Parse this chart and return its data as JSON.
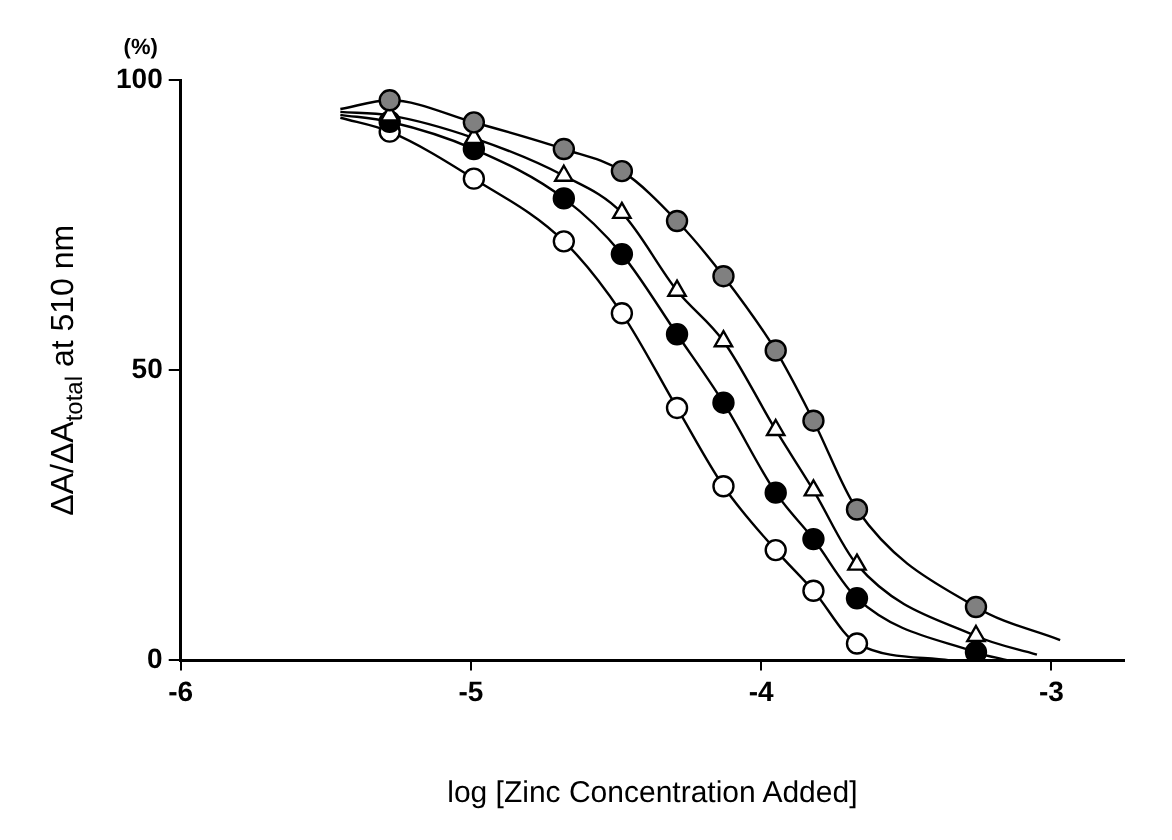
{
  "chart_data": {
    "type": "scatter",
    "xlabel": "log [Zinc Concentration Added]",
    "ylabel": "ΔA/ΔA$_{total}$ at 510 nm",
    "annotations": [
      "(%)"
    ],
    "x": [
      -5.28,
      -4.99,
      -4.68,
      -4.48,
      -4.29,
      -4.13,
      -3.95,
      -3.82,
      -3.67,
      -3.26
    ],
    "xlim": [
      -6,
      -2.75
    ],
    "xticks": [
      -6,
      -5,
      -4,
      -3
    ],
    "ylim": [
      0,
      100
    ],
    "yticks": [
      0,
      50,
      100
    ],
    "grid": false,
    "legend": false,
    "series": [
      {
        "type": "line",
        "marker": "none",
        "color": "#000000",
        "x": [
          -5.45,
          -5.28,
          -4.99,
          -4.68,
          -4.48,
          -4.29,
          -4.13,
          -3.95,
          -3.82,
          -3.67,
          -3.26,
          -2.97
        ],
        "values": [
          95,
          96.5,
          92.7,
          88.1,
          84.3,
          75.7,
          66.2,
          53.4,
          41.3,
          26,
          9.2,
          3.5
        ]
      },
      {
        "type": "line",
        "marker": "none",
        "color": "#000000",
        "x": [
          -5.45,
          -5.28,
          -4.99,
          -4.68,
          -4.48,
          -4.29,
          -4.13,
          -3.95,
          -3.82,
          -3.67,
          -3.26,
          -3.05
        ],
        "values": [
          94.5,
          93.9,
          90,
          83.5,
          77.1,
          63.7,
          55,
          39.7,
          29.3,
          16.5,
          4.2,
          1
        ]
      },
      {
        "type": "line",
        "marker": "none",
        "color": "#000000",
        "x": [
          -5.45,
          -5.28,
          -4.99,
          -4.68,
          -4.48,
          -4.29,
          -4.13,
          -3.95,
          -3.82,
          -3.67,
          -3.26,
          -3.15
        ],
        "values": [
          94,
          92.8,
          88.1,
          79.6,
          70,
          56.2,
          44.4,
          28.9,
          20.9,
          10.7,
          1.4,
          0
        ]
      },
      {
        "type": "line",
        "marker": "none",
        "color": "#000000",
        "x": [
          -5.45,
          -5.28,
          -4.99,
          -4.68,
          -4.48,
          -4.29,
          -4.13,
          -3.95,
          -3.82,
          -3.67,
          -3.35
        ],
        "values": [
          93.5,
          91.1,
          83,
          72.2,
          59.8,
          43.5,
          30,
          19,
          12,
          2.9,
          0
        ]
      },
      {
        "marker": "circle",
        "color": "#808080",
        "values": [
          96.5,
          92.7,
          88.1,
          84.3,
          75.7,
          66.2,
          53.4,
          41.3,
          26,
          9.2
        ]
      },
      {
        "marker": "triangle",
        "color": "#ffffff",
        "values": [
          93.9,
          90,
          83.5,
          77.1,
          63.7,
          55,
          39.7,
          29.3,
          16.5,
          4.2
        ]
      },
      {
        "marker": "circle",
        "color": "#000000",
        "values": [
          92.8,
          88.1,
          79.6,
          70,
          56.2,
          44.4,
          28.9,
          20.9,
          10.7,
          1.4
        ]
      },
      {
        "marker": "circle",
        "color": "#ffffff",
        "values": [
          91.1,
          83,
          72.2,
          59.8,
          43.5,
          30,
          19,
          12,
          2.9,
          null
        ]
      }
    ]
  }
}
